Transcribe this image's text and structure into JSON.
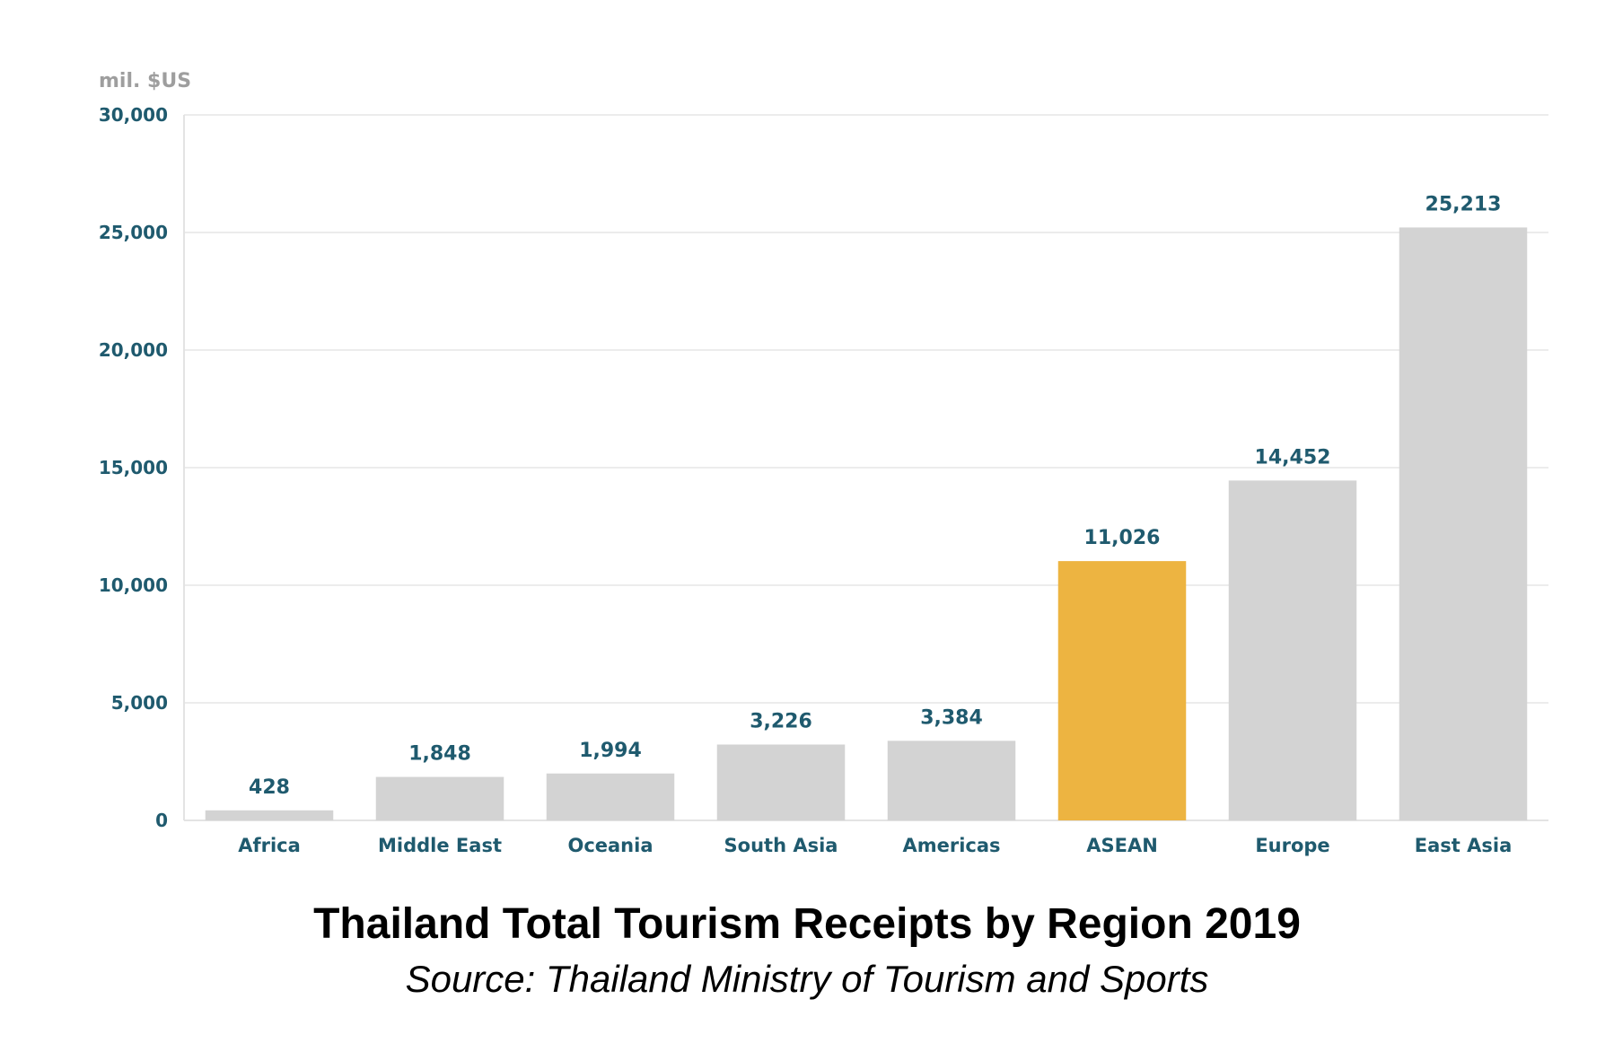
{
  "chart_data": {
    "type": "bar",
    "title": "Thailand Total Tourism Receipts by Region 2019",
    "subtitle": "Source: Thailand Ministry of Tourism and Sports",
    "unit_label": "mil. $US",
    "xlabel": "",
    "ylabel": "",
    "ylim": [
      0,
      30000
    ],
    "yticks": [
      0,
      5000,
      10000,
      15000,
      20000,
      25000,
      30000
    ],
    "ytick_labels": [
      "0",
      "5,000",
      "10,000",
      "15,000",
      "20,000",
      "25,000",
      "30,000"
    ],
    "grid": true,
    "categories": [
      "Africa",
      "Middle East",
      "Oceania",
      "South Asia",
      "Americas",
      "ASEAN",
      "Europe",
      "East Asia"
    ],
    "values": [
      428,
      1848,
      1994,
      3226,
      3384,
      11026,
      14452,
      25213
    ],
    "value_labels": [
      "428",
      "1,848",
      "1,994",
      "3,226",
      "3,384",
      "11,026",
      "14,452",
      "25,213"
    ],
    "highlight": "ASEAN",
    "colors": {
      "bar": "#d3d3d3",
      "highlight": "#edb441",
      "tick_text": "#1f5a6e",
      "unit_text": "#9e9e9e"
    }
  }
}
